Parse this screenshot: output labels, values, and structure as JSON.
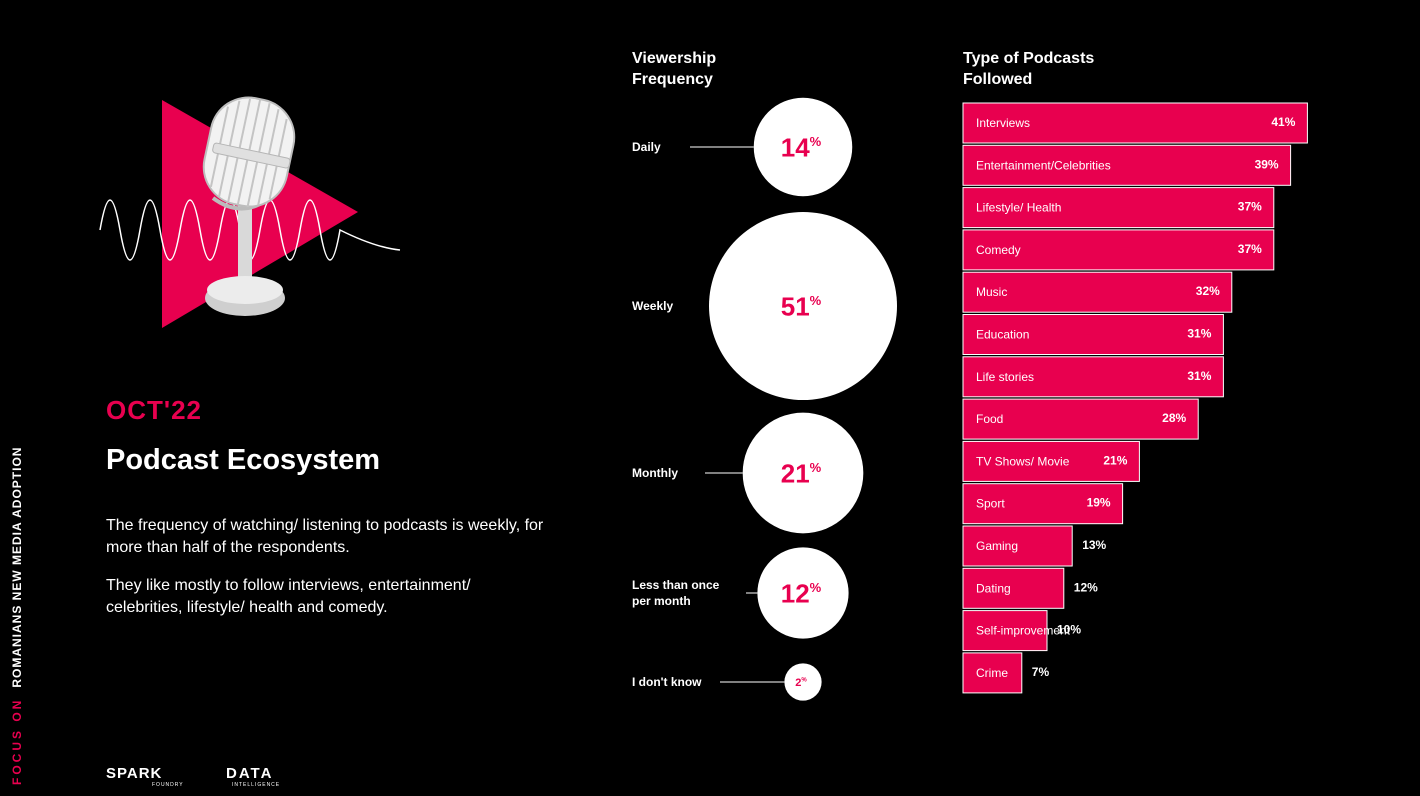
{
  "side_label": {
    "focus": "FOCUS ON",
    "rest": "ROMANIANS NEW MEDIA ADOPTION"
  },
  "date_label": "OCT'22",
  "page_title": "Podcast Ecosystem",
  "paragraphs": [
    "The frequency of watching/ listening to podcasts is weekly, for more than half of the respondents.",
    "They like mostly to follow interviews, entertainment/ celebrities, lifestyle/ health and comedy."
  ],
  "logos": {
    "spark": "SPARK",
    "spark_sub": "FOUNDRY",
    "data": "DATA",
    "data_sub": "INTELLIGENCE"
  },
  "colors": {
    "accent": "#e8004f",
    "background": "#000000",
    "bubble": "#ffffff"
  },
  "chart_data": [
    {
      "type": "bubble",
      "title": "Viewership Frequency",
      "categories": [
        "Daily",
        "Weekly",
        "Monthly",
        "Less than once per month",
        "I don't know"
      ],
      "values": [
        14,
        51,
        21,
        12,
        2
      ],
      "unit": "%"
    },
    {
      "type": "bar",
      "orientation": "horizontal",
      "title": "Type of Podcasts Followed",
      "categories": [
        "Interviews",
        "Entertainment/Celebrities",
        "Lifestyle/ Health",
        "Comedy",
        "Music",
        "Education",
        "Life stories",
        "Food",
        "TV Shows/ Movie",
        "Sport",
        "Gaming",
        "Dating",
        "Self-improvement",
        "Crime"
      ],
      "values": [
        41,
        39,
        37,
        37,
        32,
        31,
        31,
        28,
        21,
        19,
        13,
        12,
        10,
        7
      ],
      "unit": "%"
    }
  ]
}
